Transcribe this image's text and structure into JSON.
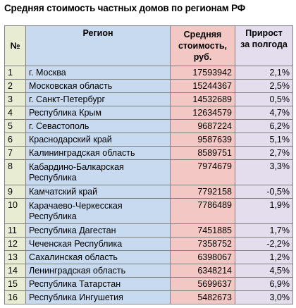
{
  "title": "Средняя стоимость частных домов по регионам РФ",
  "colors": {
    "num_column": "#e8ecd2",
    "region_column": "#c8daf0",
    "price_column": "#f3c7c4",
    "growth_column": "#e3ddee",
    "border": "#808080"
  },
  "table": {
    "headers": {
      "num": "№",
      "region": "Регион",
      "price_line1": "Средняя",
      "price_line2": "стоимость,",
      "price_line3": "руб.",
      "growth_line1": "Прирост",
      "growth_line2": "за полгода"
    },
    "rows": [
      {
        "num": "1",
        "region": "г. Москва",
        "price": "17593942",
        "growth": "2,1%",
        "tall": false
      },
      {
        "num": "2",
        "region": "Московская область",
        "price": "15244367",
        "growth": "2,5%",
        "tall": false
      },
      {
        "num": "3",
        "region": "г. Санкт-Петербург",
        "price": "14532689",
        "growth": "0,5%",
        "tall": false
      },
      {
        "num": "4",
        "region": "Республика Крым",
        "price": "12634579",
        "growth": "4,7%",
        "tall": false
      },
      {
        "num": "5",
        "region": "г. Севастополь",
        "price": "9687224",
        "growth": "6,2%",
        "tall": false
      },
      {
        "num": "6",
        "region": "Краснодарский край",
        "price": "9587639",
        "growth": "5,1%",
        "tall": false
      },
      {
        "num": "7",
        "region": "Калининградская область",
        "price": "8589751",
        "growth": "2,7%",
        "tall": false
      },
      {
        "num": "8",
        "region": "Кабардино-Балкарская Республика",
        "price": "7974679",
        "growth": "3,3%",
        "tall": true
      },
      {
        "num": "9",
        "region": "Камчатский край",
        "price": "7792158",
        "growth": "-0,5%",
        "tall": false
      },
      {
        "num": "10",
        "region": "Карачаево-Черкесская Республика",
        "price": "7786489",
        "growth": "1,9%",
        "tall": true
      },
      {
        "num": "11",
        "region": "Республика Дагестан",
        "price": "7451885",
        "growth": "1,7%",
        "tall": false
      },
      {
        "num": "12",
        "region": "Чеченская Республика",
        "price": "7358752",
        "growth": "-2,2%",
        "tall": false
      },
      {
        "num": "13",
        "region": "Сахалинская область",
        "price": "6398067",
        "growth": "1,2%",
        "tall": false
      },
      {
        "num": "14",
        "region": "Ленинградская область",
        "price": "6348214",
        "growth": "4,5%",
        "tall": false
      },
      {
        "num": "15",
        "region": "Республика Татарстан",
        "price": "5699637",
        "growth": "6,9%",
        "tall": false
      },
      {
        "num": "16",
        "region": "Республика Ингушетия",
        "price": "5482673",
        "growth": "3,0%",
        "tall": false
      }
    ]
  }
}
